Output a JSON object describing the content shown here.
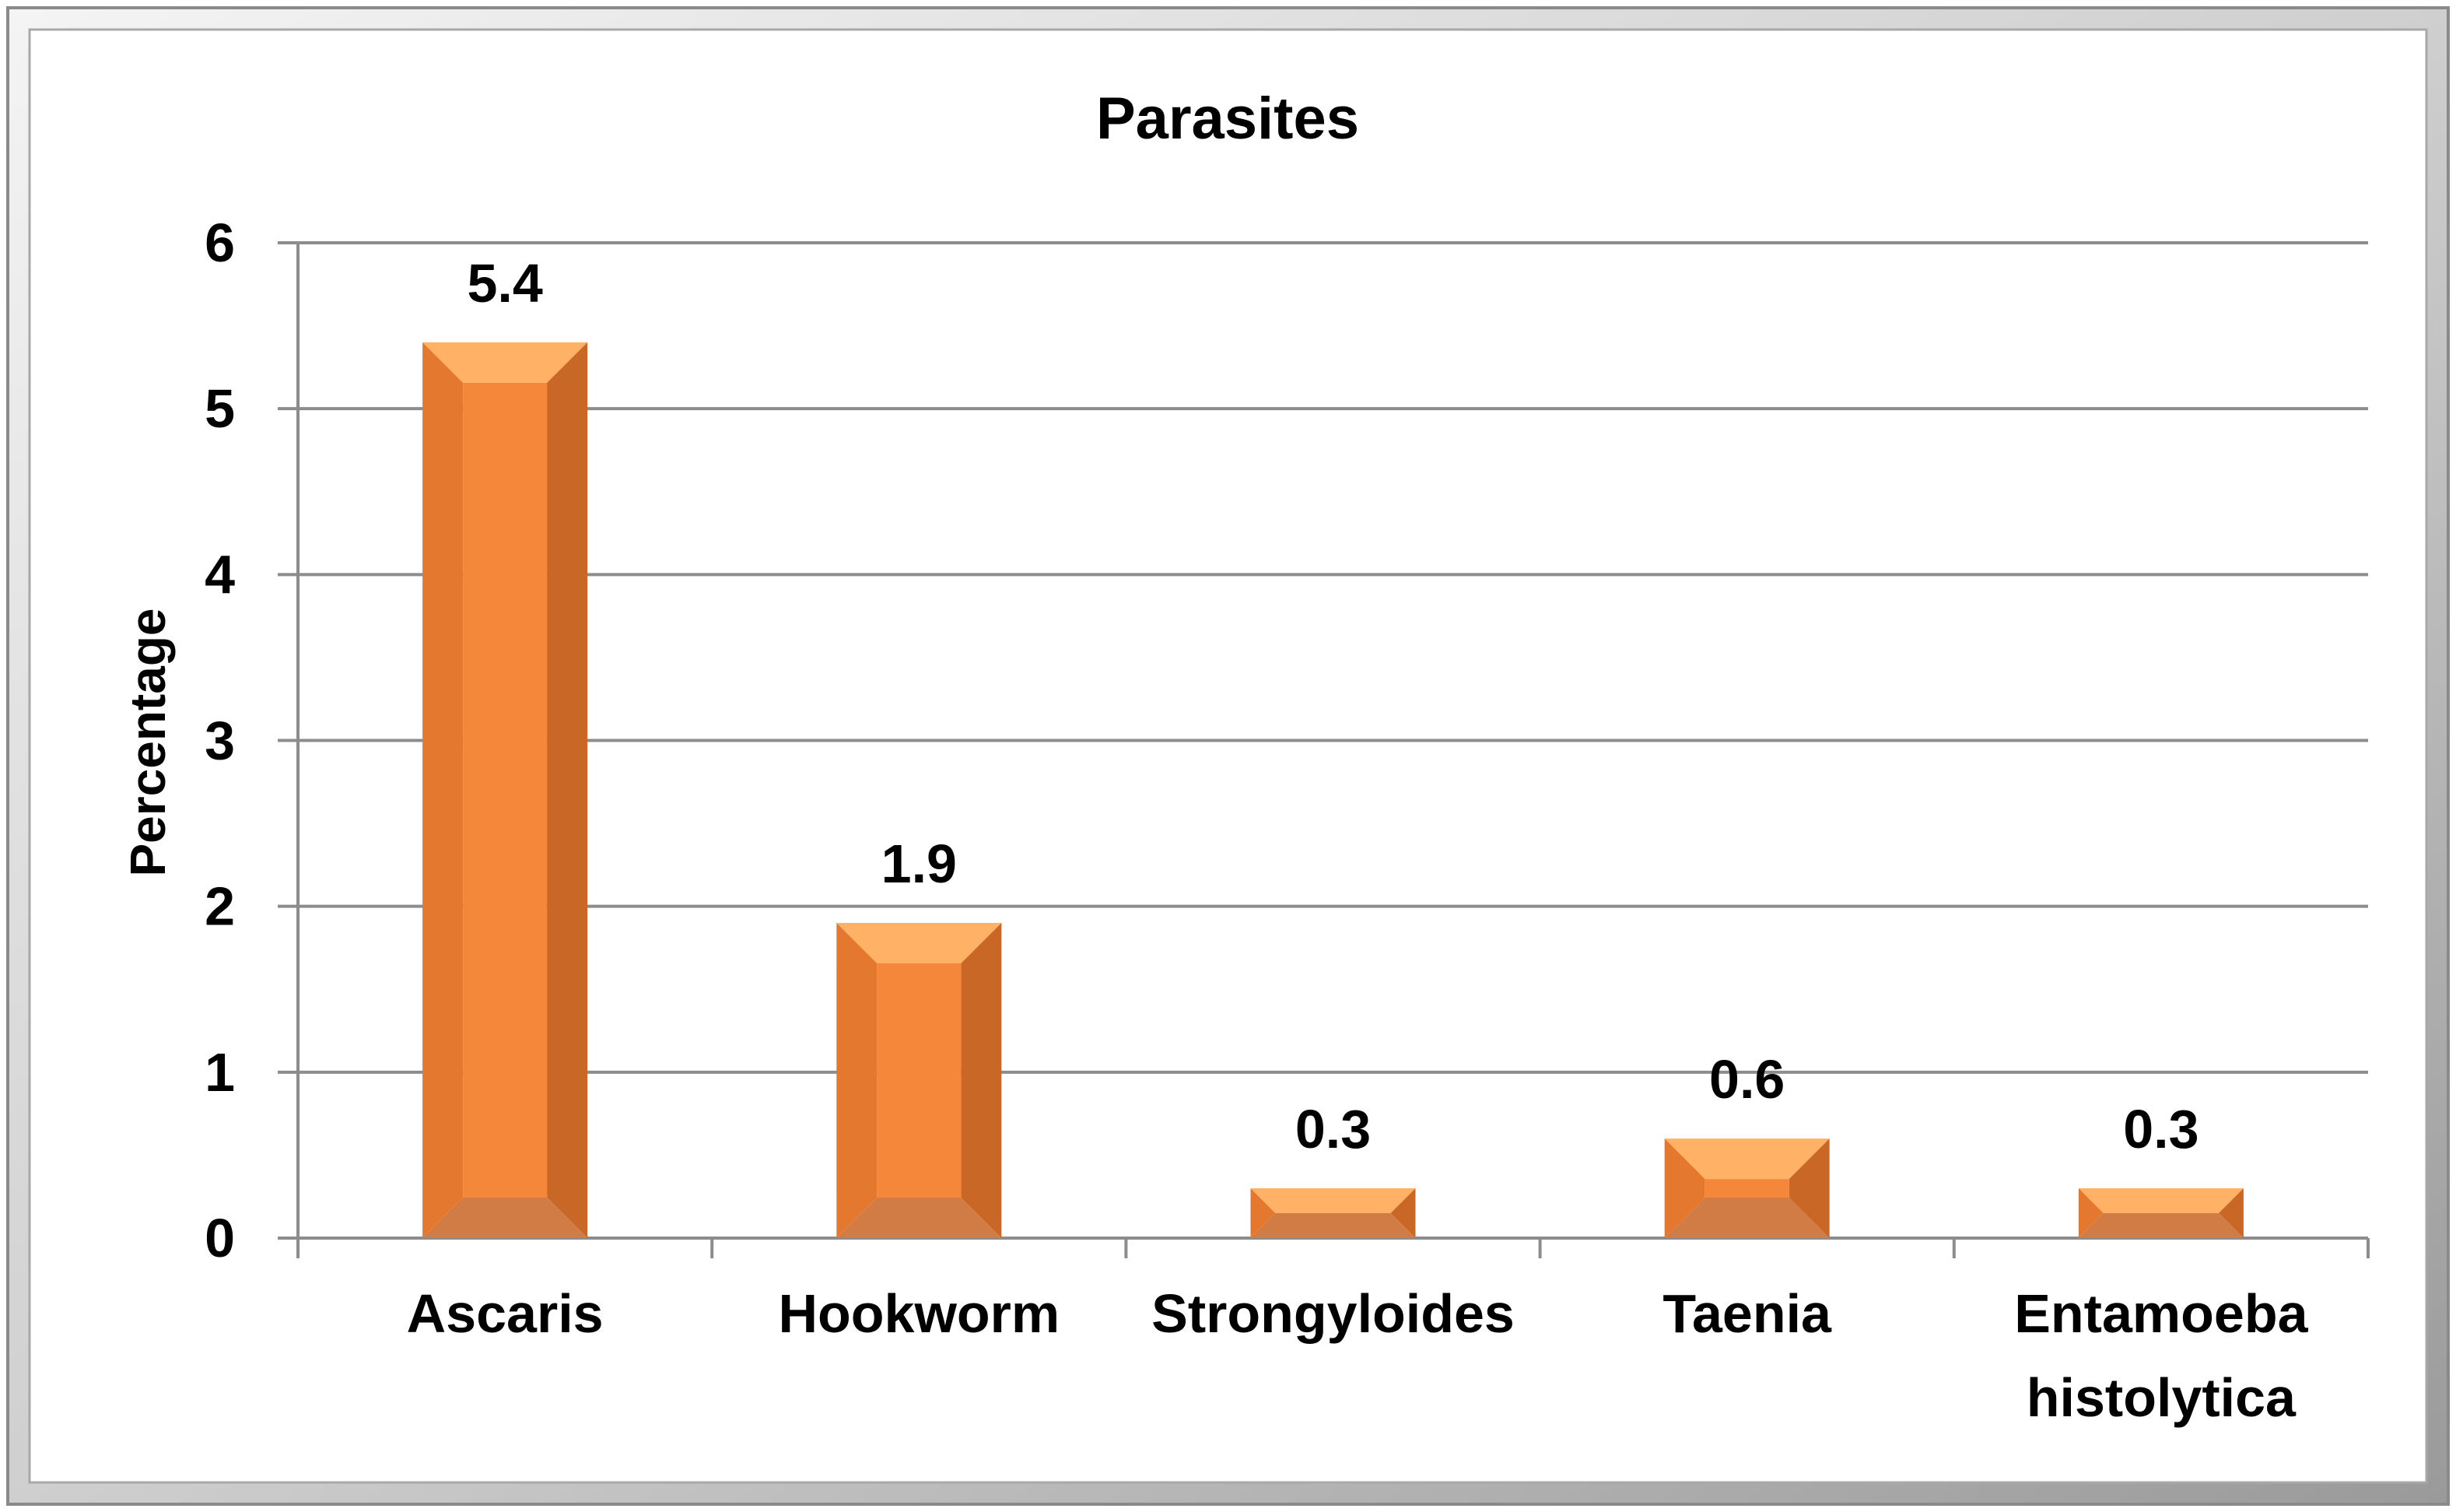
{
  "chart_data": {
    "type": "bar",
    "title": "Parasites",
    "xlabel": "",
    "ylabel": "Percentage",
    "categories": [
      "Ascaris",
      "Hookworm",
      "Strongyloides",
      "Taenia",
      "Entamoeba histolytica"
    ],
    "category_lines": [
      [
        "Ascaris"
      ],
      [
        "Hookworm"
      ],
      [
        "Strongyloides"
      ],
      [
        "Taenia"
      ],
      [
        "Entamoeba",
        "histolytica"
      ]
    ],
    "values": [
      5.4,
      1.9,
      0.3,
      0.6,
      0.3
    ],
    "data_labels": [
      "5.4",
      "1.9",
      "0.3",
      "0.6",
      "0.3"
    ],
    "ylim": [
      0,
      6
    ],
    "yticks": [
      0,
      1,
      2,
      3,
      4,
      5,
      6
    ],
    "grid": true,
    "legend": "none",
    "colors": {
      "bar_face": "#F5873A",
      "bar_top": "#FFB266",
      "bar_right": "#C96826",
      "bar_left": "#E5782F",
      "bar_bottom": "#D27C45",
      "grid": "#8C8C8C",
      "frame_light": "#EDEDED",
      "frame_mid": "#C8C8C8",
      "frame_dark": "#8A8A8A"
    }
  }
}
